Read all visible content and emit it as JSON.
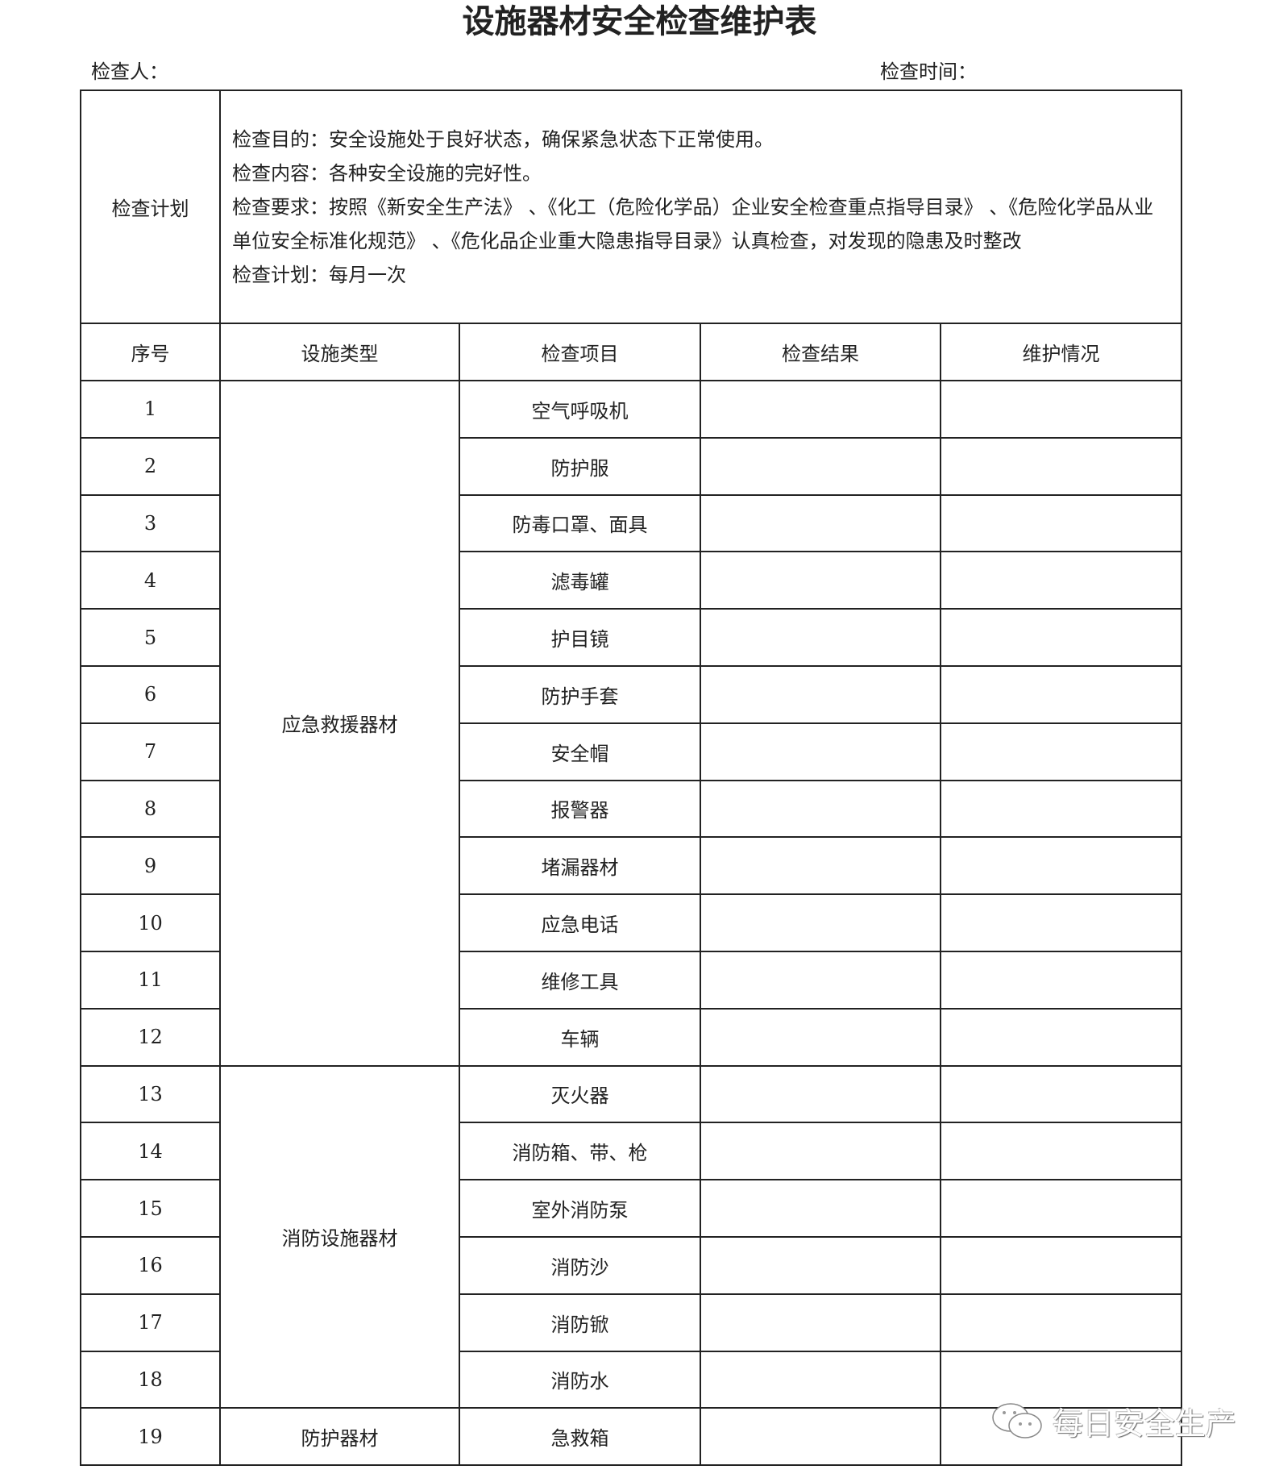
{
  "title": "设施器材安全检查维护表",
  "inspector_label": "检查人：",
  "time_label": "检查时间：",
  "plan": {
    "label": "检查计划",
    "lines": [
      "检查目的：安全设施处于良好状态，确保紧急状态下正常使用。",
      "检查内容：各种安全设施的完好性。",
      "检查要求：按照《新安全生产法》 、《化工（危险化学品）企业安全检查重点指导目录》 、《危险化学品从业单位安全标准化规范》 、《危化品企业重大隐患指导目录》认真检查，对发现的隐患及时整改",
      "检查计划：每月一次"
    ]
  },
  "headers": [
    "序号",
    "设施类型",
    "检查项目",
    "检查结果",
    "维护情况"
  ],
  "groups": [
    {
      "type": "应急救援器材",
      "items": [
        {
          "no": "1",
          "item": "空气呼吸机"
        },
        {
          "no": "2",
          "item": "防护服"
        },
        {
          "no": "3",
          "item": "防毒口罩、面具"
        },
        {
          "no": "4",
          "item": "滤毒罐"
        },
        {
          "no": "5",
          "item": "护目镜"
        },
        {
          "no": "6",
          "item": "防护手套"
        },
        {
          "no": "7",
          "item": "安全帽"
        },
        {
          "no": "8",
          "item": "报警器"
        },
        {
          "no": "9",
          "item": "堵漏器材"
        },
        {
          "no": "10",
          "item": "应急电话"
        },
        {
          "no": "11",
          "item": "维修工具"
        },
        {
          "no": "12",
          "item": "车辆"
        }
      ]
    },
    {
      "type": "消防设施器材",
      "items": [
        {
          "no": "13",
          "item": "灭火器"
        },
        {
          "no": "14",
          "item": "消防箱、带、枪"
        },
        {
          "no": "15",
          "item": "室外消防泵"
        },
        {
          "no": "16",
          "item": "消防沙"
        },
        {
          "no": "17",
          "item": "消防锨"
        },
        {
          "no": "18",
          "item": "消防水"
        }
      ]
    },
    {
      "type": "防护器材",
      "items": [
        {
          "no": "19",
          "item": "急救箱"
        }
      ]
    }
  ],
  "watermark": {
    "text": "每日安全生产",
    "icon": "wechat-icon"
  }
}
